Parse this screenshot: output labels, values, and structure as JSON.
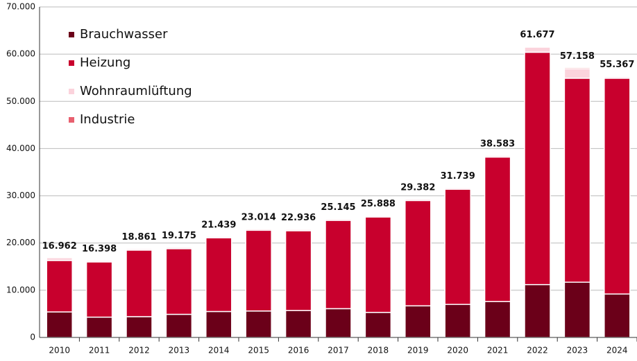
{
  "chart_data": {
    "type": "stacked_bar",
    "categories": [
      "2010",
      "2011",
      "2012",
      "2013",
      "2014",
      "2015",
      "2016",
      "2017",
      "2018",
      "2019",
      "2020",
      "2021",
      "2022",
      "2023",
      "2024"
    ],
    "series": [
      {
        "name": "Brauchwasser",
        "color": "#6b0019",
        "values": [
          5400,
          4300,
          4400,
          4900,
          5500,
          5600,
          5700,
          6100,
          5300,
          6700,
          7000,
          7600,
          11200,
          11700,
          9200
        ]
      },
      {
        "name": "Heizung",
        "color": "#c8002d",
        "values": [
          10900,
          11700,
          14100,
          13900,
          15600,
          17100,
          16900,
          18700,
          20200,
          22300,
          24400,
          30600,
          49200,
          43200,
          45700
        ]
      },
      {
        "name": "Wohnraumlüftung",
        "color": "#fbd3dc",
        "values": [
          600,
          300,
          300,
          300,
          300,
          300,
          300,
          300,
          300,
          300,
          300,
          300,
          1100,
          2000,
          300
        ]
      },
      {
        "name": "Industrie",
        "color": "#e8606f",
        "values": [
          62,
          98,
          61,
          75,
          39,
          14,
          36,
          45,
          88,
          82,
          39,
          83,
          177,
          258,
          167
        ]
      }
    ],
    "totals": {
      "values": [
        16962,
        16398,
        18861,
        19175,
        21439,
        23014,
        22936,
        25145,
        25888,
        29382,
        31739,
        38583,
        61677,
        57158,
        55367
      ],
      "value_labels": [
        "16.962",
        "16.398",
        "18.861",
        "19.175",
        "21.439",
        "23.014",
        "22.936",
        "25.145",
        "25.888",
        "29.382",
        "31.739",
        "38.583",
        "61.677",
        "57.158",
        "55.367"
      ]
    },
    "ylim": [
      0,
      70000
    ],
    "yticks": [
      0,
      {
        "value": 10000,
        "label": "10.000"
      },
      {
        "value": 20000,
        "label": "20.000"
      },
      {
        "value": 30000,
        "label": "30.000"
      },
      {
        "value": 40000,
        "label": "40.000"
      },
      {
        "value": 50000,
        "label": "50.000"
      },
      {
        "value": 60000,
        "label": "60.000"
      },
      {
        "value": 70000,
        "label": "70.000"
      }
    ],
    "grid": true,
    "legend": "top-left"
  }
}
